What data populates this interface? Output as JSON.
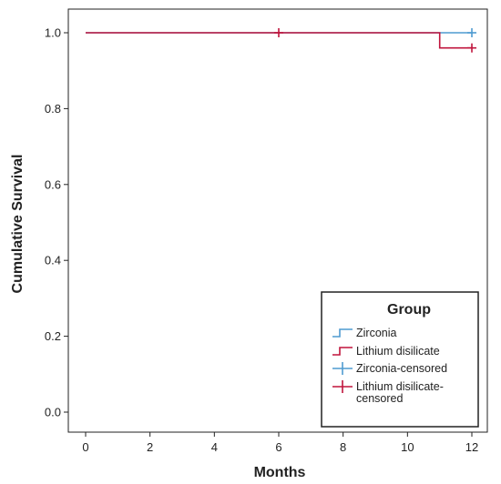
{
  "chart_data": {
    "type": "line",
    "subtype": "kaplan-meier",
    "title": "",
    "xlabel": "Months",
    "ylabel": "Cumulative Survival",
    "xlim": [
      0,
      12
    ],
    "ylim": [
      0,
      1.0
    ],
    "x_ticks": [
      "0",
      "2",
      "4",
      "6",
      "8",
      "10",
      "12"
    ],
    "y_ticks": [
      "0.0",
      "0.2",
      "0.4",
      "0.6",
      "0.8",
      "1.0"
    ],
    "grid": false,
    "legend": {
      "title": "Group",
      "position": "bottom-right",
      "entries": [
        {
          "label": "Zirconia",
          "kind": "step",
          "color": "#4f9bd1"
        },
        {
          "label": "Lithium disilicate",
          "kind": "step",
          "color": "#c0143c"
        },
        {
          "label": "Zirconia-censored",
          "kind": "censor",
          "color": "#4f9bd1"
        },
        {
          "label_lines": [
            "Lithium disilicate-",
            "censored"
          ],
          "kind": "censor",
          "color": "#c0143c"
        }
      ]
    },
    "series": [
      {
        "name": "Zirconia",
        "color": "#4f9bd1",
        "steps": [
          [
            0,
            1.0
          ],
          [
            12,
            1.0
          ]
        ],
        "censored": [
          [
            12,
            1.0
          ]
        ]
      },
      {
        "name": "Lithium disilicate",
        "color": "#c0143c",
        "steps": [
          [
            0,
            1.0
          ],
          [
            11,
            1.0
          ],
          [
            11,
            0.96
          ],
          [
            12,
            0.96
          ]
        ],
        "censored": [
          [
            6,
            1.0
          ],
          [
            12,
            0.96
          ]
        ]
      }
    ]
  }
}
